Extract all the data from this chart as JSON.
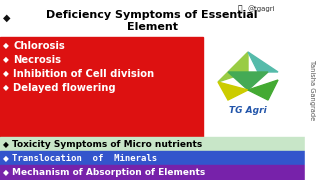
{
  "bg_color": "#ffffff",
  "title_line1": "Deficiency Symptoms of Essential",
  "title_line2": "Element",
  "title_color": "#000000",
  "title_fontsize": 8.0,
  "diamond_color": "#111111",
  "instagram_text": "@tgagri",
  "red_box_color": "#dd1111",
  "red_items": [
    "Chlorosis",
    "Necrosis",
    "Inhibition of Cell division",
    "Delayed flowering"
  ],
  "red_text_color": "#ffffff",
  "red_fontsize": 7.2,
  "green_bg": "#c8e6c8",
  "green_text": "Toxicity Symptoms of Micro nutrients",
  "green_text_color": "#000000",
  "green_fontsize": 6.5,
  "blue_bg": "#3355cc",
  "blue_text": "Translocation  of  Minerals",
  "blue_text_color": "#ffffff",
  "blue_fontsize": 6.5,
  "purple_bg": "#7722aa",
  "purple_text": "Mechanism of Absorption of Elements",
  "purple_text_color": "#ffffff",
  "purple_fontsize": 6.5,
  "side_text": "Tanisha Gangrade",
  "side_text_color": "#555555",
  "tgagri_text": "TG Agri",
  "tgagri_color": "#2255aa",
  "logo_colors": {
    "top_left_leaf": "#99cc44",
    "top_right_leaf": "#55bbaa",
    "middle_leaf": "#44aa55",
    "bottom_yellow": "#cccc00",
    "bottom_green": "#44aa33"
  }
}
